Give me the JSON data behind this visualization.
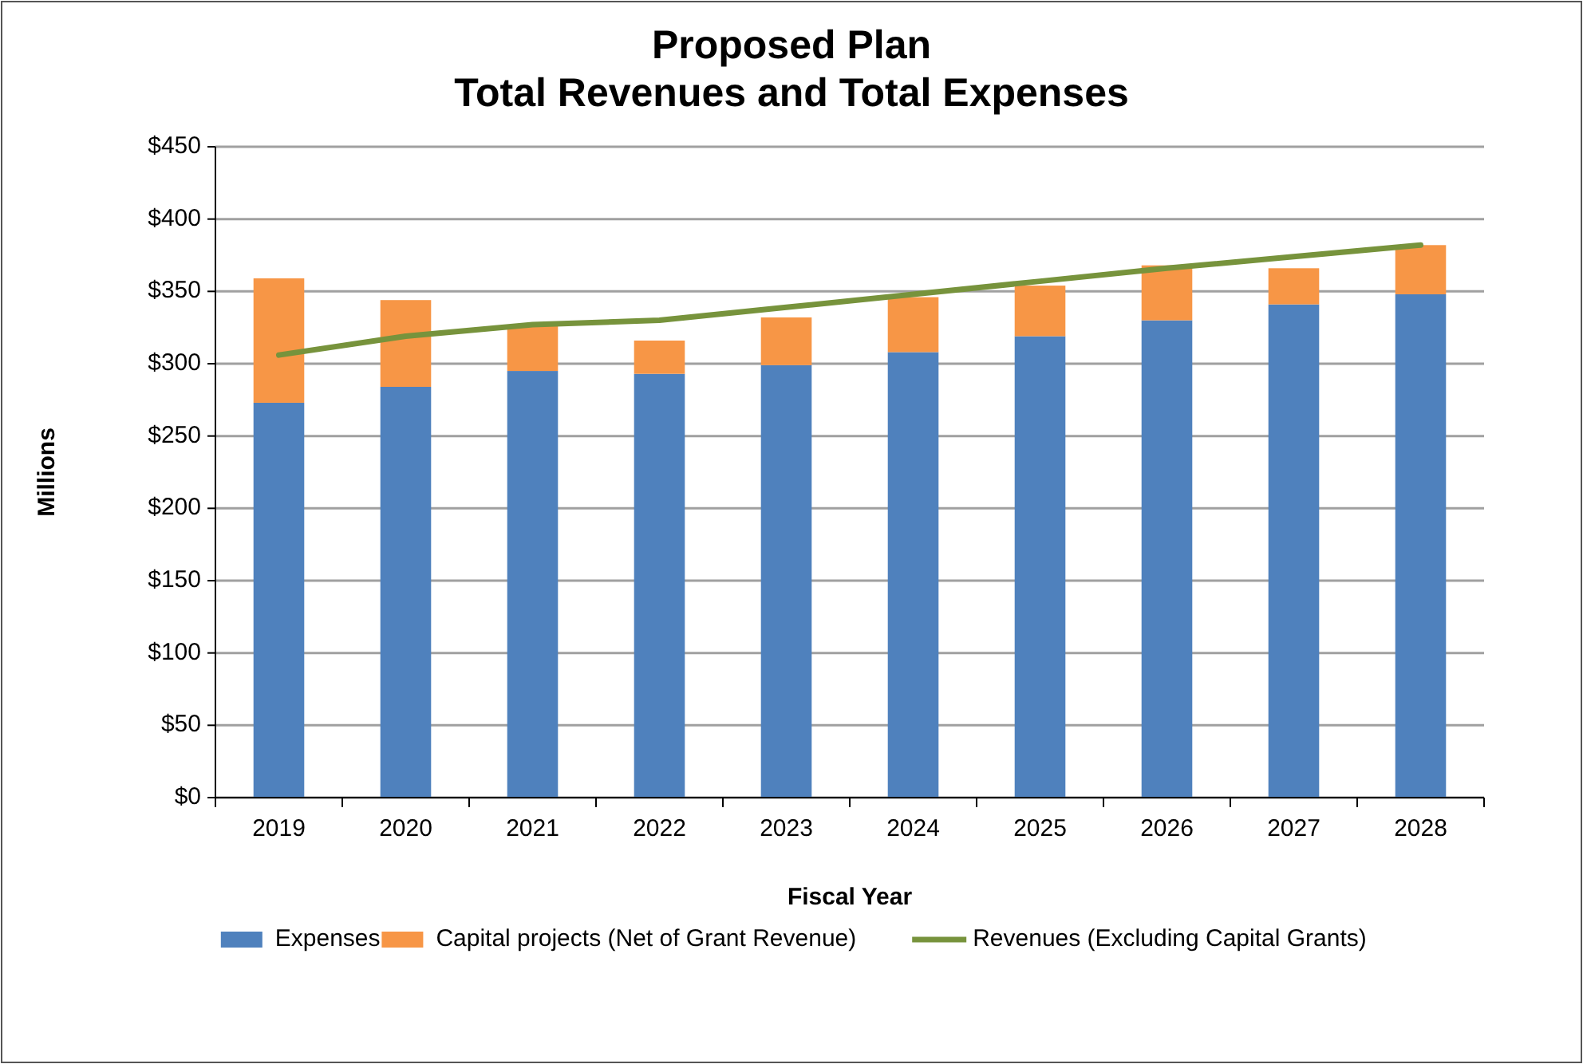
{
  "chart_data": {
    "type": "bar",
    "stacked": true,
    "title": "Proposed Plan\nTotal Revenues and Total Expenses",
    "xlabel": "Fiscal Year",
    "ylabel": "Millions",
    "categories": [
      "2019",
      "2020",
      "2021",
      "2022",
      "2023",
      "2024",
      "2025",
      "2026",
      "2027",
      "2028"
    ],
    "series": [
      {
        "name": "Expenses",
        "color": "#4f81bd",
        "values": [
          273,
          284,
          295,
          293,
          299,
          308,
          319,
          330,
          341,
          348
        ]
      },
      {
        "name": "Capital projects (Net of Grant Revenue)",
        "color": "#f79646",
        "values": [
          86,
          60,
          32,
          23,
          33,
          38,
          35,
          38,
          25,
          34
        ]
      },
      {
        "name": "Revenues (Excluding Capital Grants)",
        "type": "line",
        "color": "#77933c",
        "values": [
          306,
          319,
          327,
          330,
          339,
          348,
          357,
          366,
          374,
          382
        ]
      }
    ],
    "ylim": [
      0,
      450
    ],
    "yticks": [
      {
        "value": 0,
        "label": "$0"
      },
      {
        "value": 50,
        "label": "$50"
      },
      {
        "value": 100,
        "label": "$100"
      },
      {
        "value": 150,
        "label": "$150"
      },
      {
        "value": 200,
        "label": "$200"
      },
      {
        "value": 250,
        "label": "$250"
      },
      {
        "value": 300,
        "label": "$300"
      },
      {
        "value": 350,
        "label": "$350"
      },
      {
        "value": 400,
        "label": "$400"
      },
      {
        "value": 450,
        "label": "$450"
      }
    ],
    "grid": "y",
    "legend": "bottom"
  }
}
